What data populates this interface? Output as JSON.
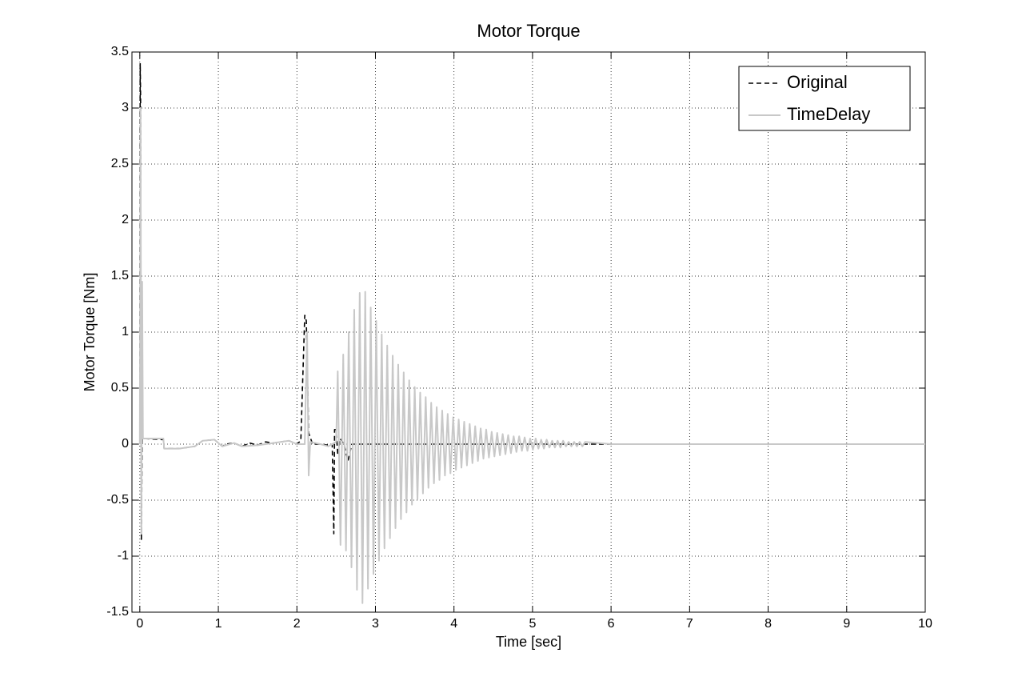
{
  "chart_data": {
    "type": "line",
    "title": "Motor Torque",
    "x_label": "Time [sec]",
    "y_label": "Motor Torque [Nm]",
    "xlim": [
      -0.1,
      10
    ],
    "ylim": [
      -1.5,
      3.5
    ],
    "xticks": [
      0,
      1,
      2,
      3,
      4,
      5,
      6,
      7,
      8,
      9,
      10
    ],
    "yticks": [
      -1.5,
      -1,
      -0.5,
      0,
      0.5,
      1,
      1.5,
      2,
      2.5,
      3,
      3.5
    ],
    "grid": true,
    "legend": "upper right",
    "series": [
      {
        "name": "Original",
        "color": "#000000",
        "dash": true,
        "x": [
          0,
          0.005,
          0.01,
          0.02,
          0.03,
          0.04,
          0.3,
          0.31,
          0.5,
          0.7,
          0.8,
          0.95,
          1.05,
          1.1,
          1.2,
          1.3,
          1.4,
          1.5,
          1.6,
          1.7,
          1.8,
          1.9,
          2.0,
          2.05,
          2.1,
          2.12,
          2.15,
          2.2,
          2.3,
          2.4,
          2.45,
          2.47,
          2.48,
          2.5,
          2.52,
          2.55,
          2.6,
          2.65,
          2.7,
          3,
          4,
          5,
          6,
          7,
          8,
          10
        ],
        "values": [
          0,
          3.4,
          3.1,
          -0.85,
          0.05,
          0.05,
          0.04,
          -0.04,
          -0.04,
          -0.02,
          0.03,
          0.04,
          -0.02,
          0,
          0.01,
          -0.02,
          0.01,
          -0.01,
          0.02,
          0.01,
          0.02,
          0.03,
          0,
          0.03,
          1.15,
          1.1,
          0.1,
          0,
          0,
          -0.01,
          0,
          -0.8,
          0.13,
          0.13,
          -0.1,
          0.05,
          0,
          -0.15,
          0,
          0,
          0,
          0,
          0,
          0,
          0,
          0
        ]
      },
      {
        "name": "TimeDelay",
        "color": "#c8c8c8",
        "dash": false,
        "x": [
          0,
          0.01,
          0.02,
          0.03,
          0.04,
          0.3,
          0.31,
          0.5,
          0.7,
          0.8,
          0.95,
          1.05,
          1.2,
          1.3,
          1.5,
          1.7,
          1.9,
          2.0,
          2.1,
          2.13,
          2.15,
          2.17,
          2.3,
          2.4,
          2.45,
          2.5,
          2.52,
          2.555,
          2.59,
          2.625,
          2.66,
          2.695,
          2.73,
          2.765,
          2.8,
          2.835,
          2.87,
          2.905,
          2.94,
          2.975,
          3.01,
          3.045,
          3.08,
          3.115,
          3.15,
          3.185,
          3.22,
          3.255,
          3.29,
          3.325,
          3.36,
          3.395,
          3.43,
          3.465,
          3.5,
          3.535,
          3.57,
          3.605,
          3.64,
          3.675,
          3.71,
          3.745,
          3.78,
          3.815,
          3.85,
          3.885,
          3.92,
          3.955,
          3.99,
          4.025,
          4.06,
          4.095,
          4.13,
          4.165,
          4.2,
          4.235,
          4.27,
          4.305,
          4.34,
          4.375,
          4.41,
          4.445,
          4.48,
          4.515,
          4.55,
          4.585,
          4.62,
          4.655,
          4.69,
          4.725,
          4.76,
          4.795,
          4.83,
          4.865,
          4.9,
          4.935,
          4.97,
          5.005,
          5.04,
          5.075,
          5.11,
          5.145,
          5.18,
          5.215,
          5.25,
          5.285,
          5.32,
          5.355,
          5.39,
          5.425,
          5.46,
          5.495,
          5.53,
          5.565,
          5.6,
          5.635,
          5.67,
          6,
          7.8,
          10
        ],
        "values": [
          0,
          3.0,
          -0.8,
          1.45,
          0.05,
          0.05,
          -0.04,
          -0.04,
          -0.02,
          0.03,
          0.04,
          -0.02,
          0.01,
          -0.02,
          -0.01,
          0.01,
          0.03,
          0,
          0,
          1.0,
          -0.28,
          0.02,
          0,
          -0.02,
          0,
          0.02,
          0.65,
          -0.9,
          0.8,
          -0.95,
          1.0,
          -1.1,
          1.2,
          -1.3,
          1.35,
          -1.42,
          1.36,
          -1.29,
          1.22,
          -1.16,
          1.1,
          -1.04,
          0.98,
          -0.93,
          0.88,
          -0.84,
          0.79,
          -0.75,
          0.71,
          -0.67,
          0.64,
          -0.61,
          0.57,
          -0.54,
          0.51,
          -0.49,
          0.46,
          -0.44,
          0.42,
          -0.39,
          0.37,
          -0.35,
          0.33,
          -0.32,
          0.3,
          -0.28,
          0.27,
          -0.26,
          0.24,
          -0.23,
          0.22,
          -0.21,
          0.2,
          -0.19,
          0.18,
          -0.17,
          0.16,
          -0.15,
          0.14,
          -0.13,
          0.13,
          -0.12,
          0.11,
          -0.11,
          0.1,
          -0.1,
          0.09,
          -0.09,
          0.08,
          -0.08,
          0.07,
          -0.07,
          0.07,
          -0.06,
          0.06,
          -0.06,
          0.05,
          -0.05,
          0.05,
          -0.04,
          0.04,
          -0.04,
          0.04,
          -0.03,
          0.03,
          -0.03,
          0.03,
          -0.03,
          0.03,
          -0.02,
          0.02,
          -0.02,
          0.02,
          -0.02,
          0.02,
          -0.02,
          0.02,
          0,
          0,
          0
        ]
      }
    ]
  }
}
